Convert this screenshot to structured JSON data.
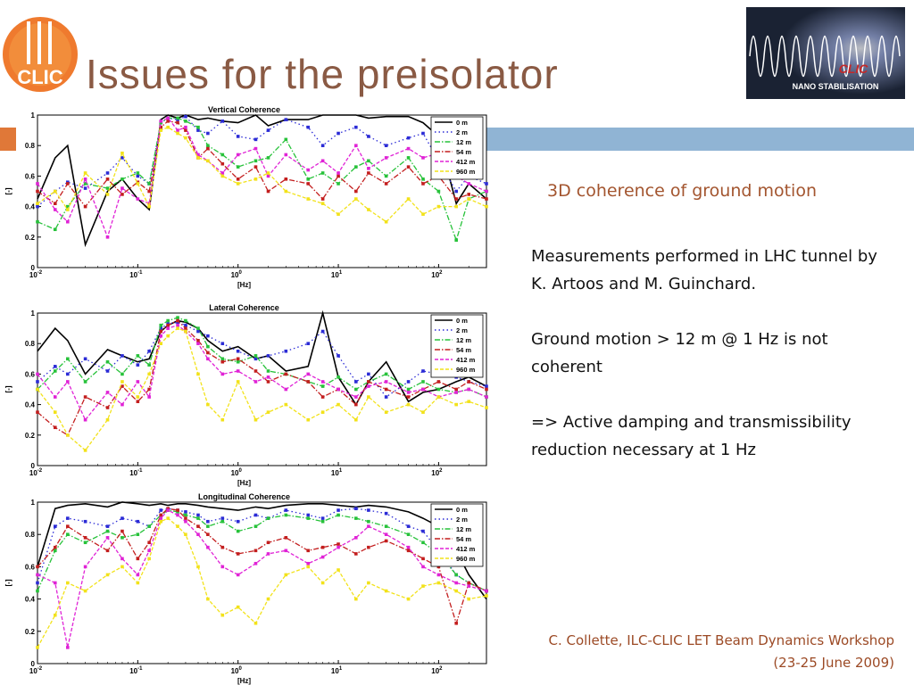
{
  "slide": {
    "title": "Issues for the preisolator",
    "subtitle": "3D coherence of ground motion",
    "paragraphs": [
      "Measurements performed in LHC tunnel by K. Artoos and M. Guinchard.",
      "Ground motion > 12 m @ 1 Hz is not coherent",
      "=> Active damping and transmissibility reduction necessary at 1 Hz"
    ],
    "footer_line1": "C. Collette, ILC-CLIC LET Beam Dynamics Workshop",
    "footer_line2": "(23-25 June 2009)",
    "logo_text": "CLIC",
    "banner_brand": "CLIC",
    "banner_text": "NANO STABILISATION",
    "colors": {
      "title": "#8a5a44",
      "accent_orange": "#e07838",
      "bar_blue": "#90b4d4",
      "footer": "#9c4a25"
    }
  },
  "chart_data": [
    {
      "type": "line",
      "title": "Vertical Coherence",
      "xlabel": "[Hz]",
      "ylabel": "[-]",
      "xscale": "log",
      "xlim": [
        0.01,
        300
      ],
      "ylim": [
        0,
        1
      ],
      "x_ticks": [
        "10^-2",
        "10^-1",
        "10^0",
        "10^1",
        "10^2"
      ],
      "y_ticks": [
        "0",
        "0.2",
        "0.4",
        "0.6",
        "0.8",
        "1"
      ],
      "legend_position": "top-right",
      "x": [
        0.01,
        0.015,
        0.02,
        0.03,
        0.05,
        0.07,
        0.1,
        0.13,
        0.17,
        0.2,
        0.25,
        0.3,
        0.4,
        0.5,
        0.7,
        1,
        1.5,
        2,
        3,
        5,
        7,
        10,
        15,
        20,
        30,
        50,
        70,
        100,
        150,
        200,
        300
      ],
      "series": [
        {
          "name": "0 m",
          "color": "#000000",
          "style": "solid",
          "values": [
            0.45,
            0.72,
            0.8,
            0.15,
            0.5,
            0.58,
            0.45,
            0.38,
            0.97,
            1.0,
            0.98,
            1.0,
            0.97,
            0.98,
            0.96,
            0.95,
            1.0,
            0.93,
            0.97,
            0.97,
            1.0,
            1.0,
            1.0,
            0.98,
            0.99,
            0.99,
            0.95,
            0.86,
            0.42,
            0.55,
            0.45
          ]
        },
        {
          "name": "2 m",
          "color": "#2b2bd6",
          "style": "dotted",
          "values": [
            0.4,
            0.5,
            0.56,
            0.52,
            0.62,
            0.72,
            0.6,
            0.55,
            0.95,
            0.98,
            0.97,
            0.99,
            0.9,
            0.88,
            0.96,
            0.86,
            0.84,
            0.9,
            0.97,
            0.92,
            0.8,
            0.88,
            0.92,
            0.86,
            0.8,
            0.85,
            0.88,
            0.7,
            0.5,
            0.6,
            0.55
          ]
        },
        {
          "name": "12 m",
          "color": "#27c23a",
          "style": "dashdot",
          "values": [
            0.3,
            0.25,
            0.4,
            0.55,
            0.52,
            0.58,
            0.62,
            0.55,
            0.95,
            0.98,
            0.98,
            0.96,
            0.92,
            0.8,
            0.74,
            0.66,
            0.7,
            0.72,
            0.84,
            0.58,
            0.62,
            0.55,
            0.66,
            0.7,
            0.6,
            0.72,
            0.58,
            0.5,
            0.18,
            0.45,
            0.5
          ]
        },
        {
          "name": "54 m",
          "color": "#c31e1e",
          "style": "dashdot",
          "values": [
            0.5,
            0.42,
            0.55,
            0.4,
            0.58,
            0.48,
            0.56,
            0.5,
            0.92,
            0.96,
            0.95,
            0.9,
            0.72,
            0.78,
            0.68,
            0.58,
            0.66,
            0.5,
            0.58,
            0.55,
            0.45,
            0.6,
            0.5,
            0.62,
            0.55,
            0.66,
            0.55,
            0.6,
            0.45,
            0.48,
            0.45
          ]
        },
        {
          "name": "412 m",
          "color": "#e023d6",
          "style": "dashed",
          "values": [
            0.55,
            0.38,
            0.3,
            0.58,
            0.2,
            0.52,
            0.45,
            0.42,
            0.96,
            0.98,
            0.9,
            0.92,
            0.74,
            0.7,
            0.62,
            0.74,
            0.78,
            0.6,
            0.74,
            0.64,
            0.7,
            0.62,
            0.8,
            0.65,
            0.72,
            0.78,
            0.72,
            0.75,
            0.6,
            0.55,
            0.5
          ]
        },
        {
          "name": "960 m",
          "color": "#f2e21a",
          "style": "dashed",
          "values": [
            0.42,
            0.5,
            0.38,
            0.62,
            0.48,
            0.75,
            0.55,
            0.4,
            0.9,
            0.92,
            0.88,
            0.85,
            0.72,
            0.7,
            0.6,
            0.55,
            0.58,
            0.62,
            0.5,
            0.45,
            0.42,
            0.35,
            0.45,
            0.38,
            0.3,
            0.45,
            0.35,
            0.4,
            0.4,
            0.45,
            0.4
          ]
        }
      ]
    },
    {
      "type": "line",
      "title": "Lateral Coherence",
      "xlabel": "[Hz]",
      "ylabel": "[-]",
      "xscale": "log",
      "xlim": [
        0.01,
        300
      ],
      "ylim": [
        0,
        1
      ],
      "x_ticks": [
        "10^-2",
        "10^-1",
        "10^0",
        "10^1",
        "10^2"
      ],
      "y_ticks": [
        "0",
        "0.2",
        "0.4",
        "0.6",
        "0.8",
        "1"
      ],
      "legend_position": "top-right",
      "x": [
        0.01,
        0.015,
        0.02,
        0.03,
        0.05,
        0.07,
        0.1,
        0.13,
        0.17,
        0.2,
        0.25,
        0.3,
        0.4,
        0.5,
        0.7,
        1,
        1.5,
        2,
        3,
        5,
        7,
        10,
        15,
        20,
        30,
        50,
        70,
        100,
        150,
        200,
        300
      ],
      "series": [
        {
          "name": "0 m",
          "color": "#000000",
          "style": "solid",
          "values": [
            0.75,
            0.9,
            0.82,
            0.6,
            0.76,
            0.72,
            0.68,
            0.7,
            0.88,
            0.92,
            0.95,
            0.94,
            0.9,
            0.82,
            0.75,
            0.78,
            0.7,
            0.72,
            0.62,
            0.65,
            1.0,
            0.58,
            0.4,
            0.55,
            0.68,
            0.42,
            0.48,
            0.5,
            0.55,
            0.58,
            0.52
          ]
        },
        {
          "name": "2 m",
          "color": "#2b2bd6",
          "style": "dotted",
          "values": [
            0.55,
            0.65,
            0.6,
            0.7,
            0.62,
            0.72,
            0.66,
            0.75,
            0.9,
            0.93,
            0.94,
            0.92,
            0.88,
            0.85,
            0.8,
            0.75,
            0.7,
            0.72,
            0.75,
            0.8,
            0.88,
            0.72,
            0.55,
            0.6,
            0.45,
            0.55,
            0.62,
            0.6,
            0.58,
            0.55,
            0.52
          ]
        },
        {
          "name": "12 m",
          "color": "#27c23a",
          "style": "dashdot",
          "values": [
            0.5,
            0.62,
            0.7,
            0.55,
            0.68,
            0.6,
            0.72,
            0.66,
            0.92,
            0.95,
            0.97,
            0.95,
            0.9,
            0.78,
            0.7,
            0.68,
            0.72,
            0.62,
            0.6,
            0.55,
            0.52,
            0.58,
            0.5,
            0.55,
            0.6,
            0.5,
            0.55,
            0.5,
            0.48,
            0.5,
            0.45
          ]
        },
        {
          "name": "54 m",
          "color": "#c31e1e",
          "style": "dashdot",
          "values": [
            0.35,
            0.25,
            0.2,
            0.45,
            0.38,
            0.52,
            0.42,
            0.5,
            0.88,
            0.92,
            0.95,
            0.9,
            0.82,
            0.74,
            0.68,
            0.7,
            0.62,
            0.55,
            0.6,
            0.55,
            0.45,
            0.5,
            0.4,
            0.55,
            0.5,
            0.45,
            0.5,
            0.55,
            0.5,
            0.55,
            0.5
          ]
        },
        {
          "name": "412 m",
          "color": "#e023d6",
          "style": "dashed",
          "values": [
            0.6,
            0.45,
            0.55,
            0.3,
            0.48,
            0.4,
            0.55,
            0.45,
            0.85,
            0.9,
            0.92,
            0.88,
            0.8,
            0.7,
            0.6,
            0.62,
            0.55,
            0.58,
            0.5,
            0.6,
            0.55,
            0.5,
            0.45,
            0.52,
            0.55,
            0.48,
            0.5,
            0.45,
            0.48,
            0.5,
            0.45
          ]
        },
        {
          "name": "960 m",
          "color": "#f2e21a",
          "style": "dashed",
          "values": [
            0.5,
            0.35,
            0.2,
            0.1,
            0.3,
            0.55,
            0.45,
            0.6,
            0.8,
            0.85,
            0.9,
            0.88,
            0.6,
            0.4,
            0.3,
            0.55,
            0.3,
            0.35,
            0.4,
            0.3,
            0.35,
            0.4,
            0.3,
            0.45,
            0.35,
            0.4,
            0.35,
            0.45,
            0.4,
            0.42,
            0.38
          ]
        }
      ]
    },
    {
      "type": "line",
      "title": "Longitudinal Coherence",
      "xlabel": "[Hz]",
      "ylabel": "[-]",
      "xscale": "log",
      "xlim": [
        0.01,
        300
      ],
      "ylim": [
        0,
        1
      ],
      "x_ticks": [
        "10^-2",
        "10^-1",
        "10^0",
        "10^1",
        "10^2"
      ],
      "y_ticks": [
        "0",
        "0.2",
        "0.4",
        "0.6",
        "0.8",
        "1"
      ],
      "legend_position": "top-right",
      "x": [
        0.01,
        0.015,
        0.02,
        0.03,
        0.05,
        0.07,
        0.1,
        0.13,
        0.17,
        0.2,
        0.25,
        0.3,
        0.4,
        0.5,
        0.7,
        1,
        1.5,
        2,
        3,
        5,
        7,
        10,
        15,
        20,
        30,
        50,
        70,
        100,
        150,
        200,
        300
      ],
      "series": [
        {
          "name": "0 m",
          "color": "#000000",
          "style": "solid",
          "values": [
            0.6,
            0.96,
            0.98,
            0.99,
            0.97,
            1.0,
            0.99,
            0.98,
            0.99,
            0.98,
            0.99,
            0.99,
            0.98,
            0.97,
            0.96,
            0.95,
            0.97,
            0.96,
            0.98,
            0.99,
            0.99,
            0.98,
            0.97,
            0.98,
            0.97,
            0.94,
            0.9,
            0.85,
            0.7,
            0.55,
            0.4
          ]
        },
        {
          "name": "2 m",
          "color": "#2b2bd6",
          "style": "dotted",
          "values": [
            0.5,
            0.85,
            0.9,
            0.88,
            0.85,
            0.9,
            0.88,
            0.85,
            0.95,
            0.96,
            0.95,
            0.94,
            0.92,
            0.88,
            0.9,
            0.88,
            0.92,
            0.9,
            0.95,
            0.92,
            0.9,
            0.95,
            0.96,
            0.95,
            0.93,
            0.85,
            0.82,
            0.7,
            0.55,
            0.5,
            0.45
          ]
        },
        {
          "name": "12 m",
          "color": "#27c23a",
          "style": "dashdot",
          "values": [
            0.45,
            0.7,
            0.8,
            0.75,
            0.82,
            0.78,
            0.8,
            0.85,
            0.92,
            0.95,
            0.94,
            0.92,
            0.9,
            0.85,
            0.88,
            0.82,
            0.85,
            0.9,
            0.92,
            0.9,
            0.88,
            0.92,
            0.9,
            0.88,
            0.85,
            0.8,
            0.75,
            0.68,
            0.55,
            0.5,
            0.45
          ]
        },
        {
          "name": "54 m",
          "color": "#c31e1e",
          "style": "dashdot",
          "values": [
            0.6,
            0.72,
            0.85,
            0.78,
            0.7,
            0.82,
            0.65,
            0.75,
            0.92,
            0.96,
            0.95,
            0.9,
            0.85,
            0.8,
            0.72,
            0.68,
            0.7,
            0.75,
            0.78,
            0.7,
            0.72,
            0.74,
            0.68,
            0.72,
            0.76,
            0.7,
            0.65,
            0.6,
            0.25,
            0.5,
            0.45
          ]
        },
        {
          "name": "412 m",
          "color": "#e023d6",
          "style": "dashed",
          "values": [
            0.55,
            0.5,
            0.1,
            0.6,
            0.78,
            0.65,
            0.55,
            0.7,
            0.9,
            0.95,
            0.92,
            0.88,
            0.8,
            0.72,
            0.6,
            0.55,
            0.62,
            0.68,
            0.7,
            0.62,
            0.66,
            0.72,
            0.78,
            0.85,
            0.8,
            0.72,
            0.6,
            0.55,
            0.5,
            0.48,
            0.45
          ]
        },
        {
          "name": "960 m",
          "color": "#f2e21a",
          "style": "dashed",
          "values": [
            0.1,
            0.3,
            0.5,
            0.45,
            0.55,
            0.6,
            0.5,
            0.65,
            0.88,
            0.9,
            0.85,
            0.8,
            0.6,
            0.4,
            0.3,
            0.35,
            0.25,
            0.4,
            0.55,
            0.6,
            0.5,
            0.58,
            0.4,
            0.5,
            0.45,
            0.4,
            0.48,
            0.5,
            0.45,
            0.4,
            0.42
          ]
        }
      ]
    }
  ]
}
